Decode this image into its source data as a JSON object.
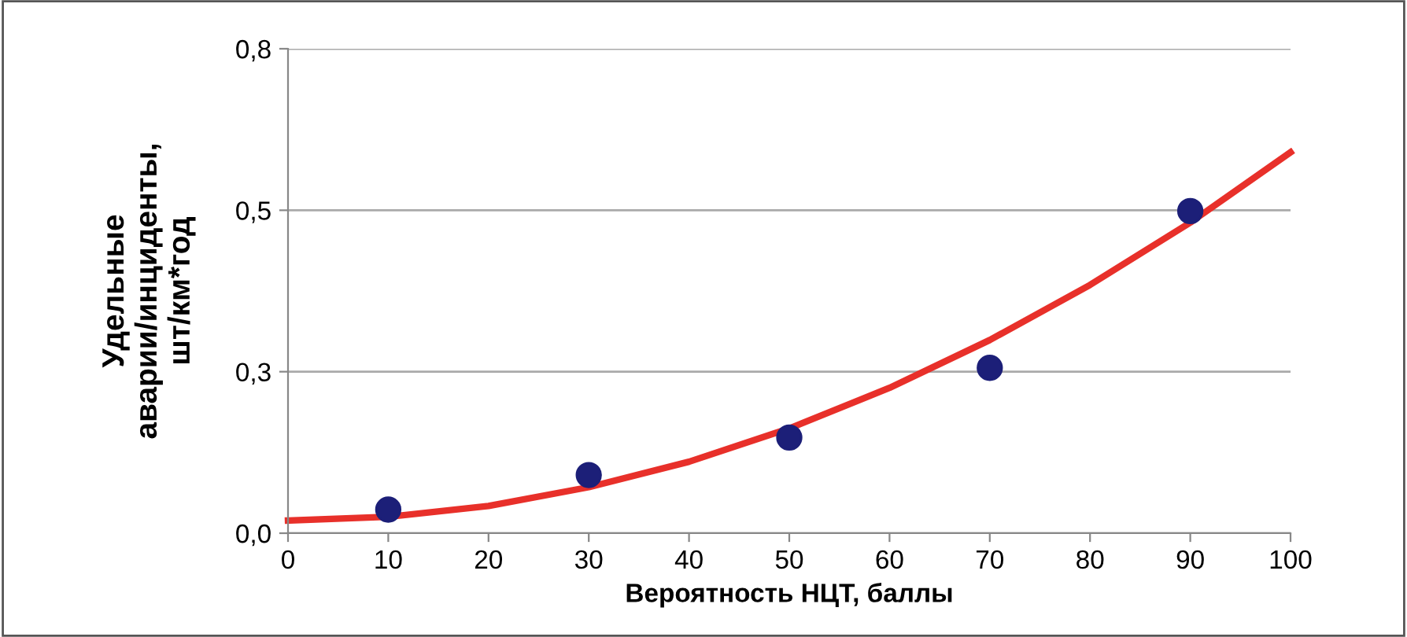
{
  "chart_data": {
    "type": "scatter",
    "xlabel": "Вероятность НЦТ, баллы",
    "ylabel": "Удельные\nаварии/инциденты,\nшт/км*год",
    "xlim": [
      0,
      100
    ],
    "xticks": [
      0,
      10,
      20,
      30,
      40,
      50,
      60,
      70,
      80,
      90,
      100
    ],
    "ylim": [
      0,
      0.8
    ],
    "yticks": [
      {
        "value": 0,
        "label": "0,0"
      },
      {
        "value": 0.2667,
        "label": "0,3"
      },
      {
        "value": 0.5333,
        "label": "0,5"
      },
      {
        "value": 0.8,
        "label": "0,8"
      }
    ],
    "grid": "y",
    "series": [
      {
        "marker": "circle",
        "color": "#1c1f78",
        "x": [
          10,
          30,
          50,
          70,
          90
        ],
        "values": [
          0.039,
          0.096,
          0.158,
          0.273,
          0.532
        ]
      },
      {
        "type": "line",
        "color": "#e8302a",
        "x": [
          0,
          10,
          20,
          30,
          40,
          50,
          60,
          70,
          80,
          90,
          100
        ],
        "values": [
          0.021,
          0.027,
          0.045,
          0.076,
          0.118,
          0.173,
          0.24,
          0.319,
          0.41,
          0.513,
          0.629
        ]
      }
    ]
  }
}
